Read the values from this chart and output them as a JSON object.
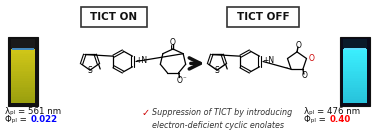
{
  "tict_on_label": "TICT ON",
  "tict_off_label": "TICT OFF",
  "left_lambda": "λₚₗ = 561 nm",
  "left_phi_prefix": "Φₚₗ = ",
  "left_phi_val": "0.022",
  "left_phi_color": "#0000FF",
  "right_lambda": "λₚₗ = 476 nm",
  "right_phi_prefix": "Φₚₗ = ",
  "right_phi_val": "0.40",
  "right_phi_color": "#FF0000",
  "bullet_color": "#CC0000",
  "annotation_text": "Suppression of TICT by introducing\nelectron-deficient cyclic enolates",
  "annotation_color": "#333333",
  "bg_color": "#ffffff"
}
